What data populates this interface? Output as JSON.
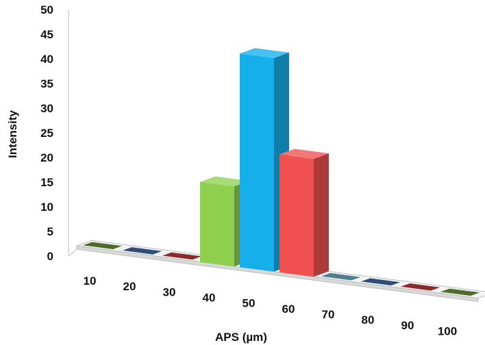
{
  "chart_data": {
    "type": "bar",
    "style": "3d-column",
    "xlabel": "APS (µm)",
    "ylabel": "Intensity",
    "categories": [
      "10",
      "20",
      "30",
      "40",
      "50",
      "60",
      "70",
      "80",
      "90",
      "100"
    ],
    "values": [
      0,
      0,
      0,
      18,
      48,
      26.5,
      0,
      0,
      0,
      0
    ],
    "ylim": [
      0,
      50
    ],
    "yticks": [
      "0",
      "5",
      "10",
      "15",
      "20",
      "25",
      "30",
      "35",
      "40",
      "45",
      "50"
    ],
    "grid": false,
    "legend": "none",
    "bar_colors": [
      "#4f6b2a",
      "#2e4d7a",
      "#8a2a2a",
      "#8fd14f",
      "#15b0ec",
      "#f0504f",
      "#4f7f8f",
      "#2e4d7a",
      "#8a2a2a",
      "#4f6b2a"
    ]
  }
}
